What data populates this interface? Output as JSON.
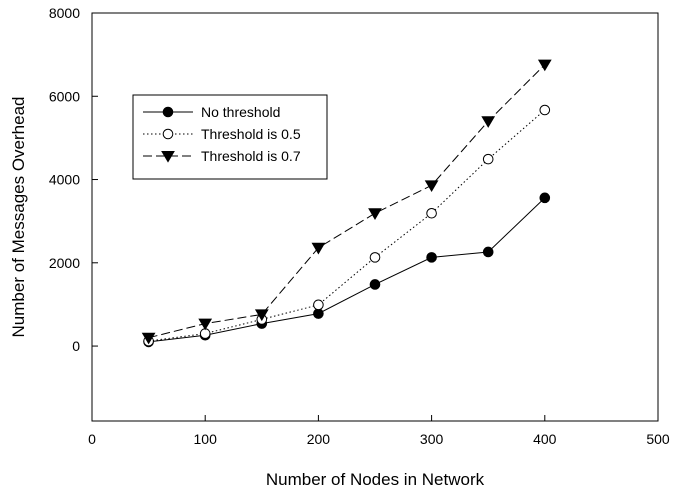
{
  "chart_data": {
    "type": "line",
    "title": "",
    "xlabel": "Number of Nodes in Network",
    "ylabel": "Number of Messages Overhead",
    "xlim": [
      0,
      500
    ],
    "ylim": [
      -1800,
      8000
    ],
    "xticks": [
      0,
      100,
      200,
      300,
      400,
      500
    ],
    "yticks": [
      0,
      2000,
      4000,
      6000,
      8000
    ],
    "grid": false,
    "legend_position": "upper-left",
    "x": [
      50,
      100,
      150,
      200,
      250,
      300,
      350,
      400
    ],
    "series": [
      {
        "name": "No threshold",
        "values": [
          100,
          260,
          540,
          780,
          1480,
          2130,
          2260,
          3560
        ],
        "marker": "filled-circle",
        "line_style": "solid",
        "color": "#000000"
      },
      {
        "name": "Threshold is 0.5",
        "values": [
          120,
          300,
          640,
          990,
          2130,
          3190,
          4490,
          5670
        ],
        "marker": "open-circle",
        "line_style": "dotted",
        "color": "#000000"
      },
      {
        "name": "Threshold is 0.7",
        "values": [
          200,
          540,
          760,
          2360,
          3190,
          3860,
          5400,
          6760
        ],
        "marker": "filled-triangle-down",
        "line_style": "dashed",
        "color": "#000000"
      }
    ]
  }
}
